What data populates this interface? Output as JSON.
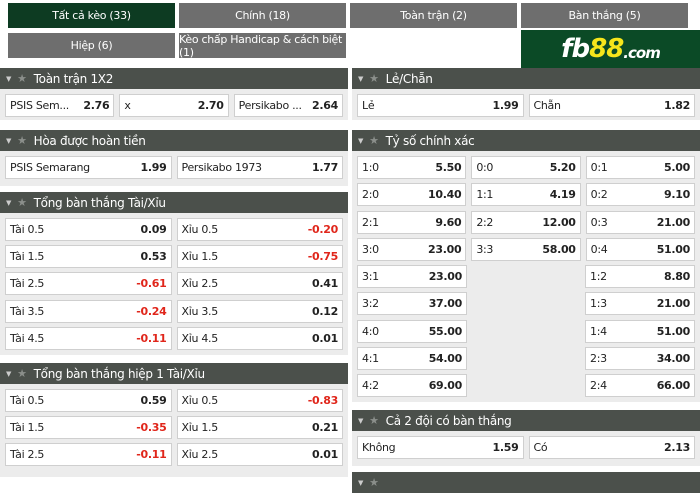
{
  "tabs": [
    {
      "label": "Tất cả kèo (33)",
      "active": true
    },
    {
      "label": "Chính (18)"
    },
    {
      "label": "Toàn trận (2)"
    },
    {
      "label": "Bàn thắng (5)"
    },
    {
      "label": "Hiệp (6)"
    },
    {
      "label": "Kèo chấp Handicap & cách biệt (1)"
    }
  ],
  "logo": {
    "text_a": "fb",
    "text_b": "88",
    "text_c": ".com"
  },
  "sections": [
    {
      "title": "Toàn trận 1X2",
      "rows": [
        [
          [
            "PSIS Sem...",
            "2.76"
          ],
          [
            "x",
            "2.70"
          ],
          [
            "Persikabo ...",
            "2.64"
          ]
        ]
      ]
    },
    {
      "title": "Hòa được hoàn tiền",
      "rows": [
        [
          [
            "PSIS Semarang",
            "1.99"
          ],
          [
            "Persikabo 1973",
            "1.77"
          ]
        ]
      ]
    },
    {
      "title": "Tổng bàn thắng Tài/Xỉu",
      "rows": [
        [
          [
            "Tài 0.5",
            "0.09"
          ],
          [
            "Xỉu 0.5",
            "-0.20"
          ]
        ],
        [
          [
            "Tài 1.5",
            "0.53"
          ],
          [
            "Xỉu 1.5",
            "-0.75"
          ]
        ],
        [
          [
            "Tài 2.5",
            "-0.61"
          ],
          [
            "Xỉu 2.5",
            "0.41"
          ]
        ],
        [
          [
            "Tài 3.5",
            "-0.24"
          ],
          [
            "Xỉu 3.5",
            "0.12"
          ]
        ],
        [
          [
            "Tài 4.5",
            "-0.11"
          ],
          [
            "Xỉu 4.5",
            "0.01"
          ]
        ]
      ]
    },
    {
      "title": "Tổng bàn thắng hiệp 1 Tài/Xỉu",
      "rows": [
        [
          [
            "Tài 0.5",
            "0.59"
          ],
          [
            "Xỉu 0.5",
            "-0.83"
          ]
        ],
        [
          [
            "Tài 1.5",
            "-0.35"
          ],
          [
            "Xỉu 1.5",
            "0.21"
          ]
        ],
        [
          [
            "Tài 2.5",
            "-0.11"
          ],
          [
            "Xỉu 2.5",
            "0.01"
          ]
        ]
      ]
    },
    {
      "title": "Lẻ/Chẵn",
      "rows": [
        [
          [
            "Lẻ",
            "1.99"
          ],
          [
            "Chẵn",
            "1.82"
          ]
        ]
      ]
    },
    {
      "title": "Tỷ số chính xác",
      "rows": [
        [
          [
            "1:0",
            "5.50"
          ],
          [
            "0:0",
            "5.20"
          ],
          [
            "0:1",
            "5.00"
          ]
        ],
        [
          [
            "2:0",
            "10.40"
          ],
          [
            "1:1",
            "4.19"
          ],
          [
            "0:2",
            "9.10"
          ]
        ],
        [
          [
            "2:1",
            "9.60"
          ],
          [
            "2:2",
            "12.00"
          ],
          [
            "0:3",
            "21.00"
          ]
        ],
        [
          [
            "3:0",
            "23.00"
          ],
          [
            "3:3",
            "58.00"
          ],
          [
            "0:4",
            "51.00"
          ]
        ],
        [
          [
            "3:1",
            "23.00"
          ],
          null,
          [
            "1:2",
            "8.80"
          ]
        ],
        [
          [
            "3:2",
            "37.00"
          ],
          null,
          [
            "1:3",
            "21.00"
          ]
        ],
        [
          [
            "4:0",
            "55.00"
          ],
          null,
          [
            "1:4",
            "51.00"
          ]
        ],
        [
          [
            "4:1",
            "54.00"
          ],
          null,
          [
            "2:3",
            "34.00"
          ]
        ],
        [
          [
            "4:2",
            "69.00"
          ],
          null,
          [
            "2:4",
            "66.00"
          ]
        ]
      ]
    },
    {
      "title": "Cả 2 đội có bàn thắng",
      "rows": [
        [
          [
            "Không",
            "1.59"
          ],
          [
            "Có",
            "2.13"
          ]
        ]
      ]
    },
    {
      "title": "",
      "rows": []
    }
  ],
  "colors": {
    "active_tab": "#0d3b22",
    "tab": "#6e6e6e",
    "header": "#4b504b",
    "negative": "#e0261b"
  }
}
